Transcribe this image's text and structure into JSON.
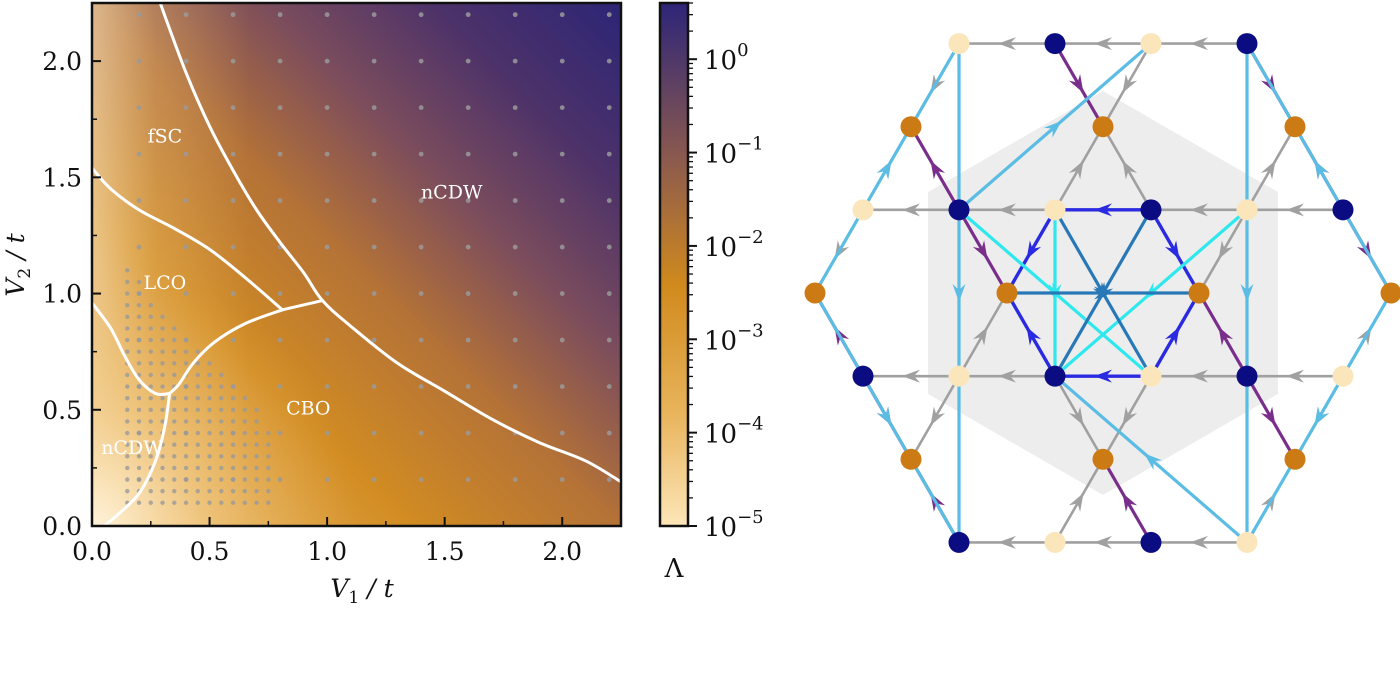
{
  "chart_data": [
    {
      "type": "heatmap",
      "title": "",
      "xlabel": "V1 / t",
      "ylabel": "V2 / t",
      "x_axis_label": {
        "main": "V",
        "sub": "1",
        "rest": " / t"
      },
      "y_axis_label": {
        "main": "V",
        "sub": "2",
        "rest": " / t"
      },
      "xlim": [
        0,
        2.25
      ],
      "ylim": [
        0,
        2.25
      ],
      "xticks": [
        0.0,
        0.5,
        1.0,
        1.5,
        2.0
      ],
      "xtick_labels": [
        "0.0",
        "0.5",
        "1.0",
        "1.5",
        "2.0"
      ],
      "yticks": [
        0.0,
        0.5,
        1.0,
        1.5,
        2.0
      ],
      "ytick_labels": [
        "0.0",
        "0.5",
        "1.0",
        "1.5",
        "2.0"
      ],
      "colorbar": {
        "label": "Λ",
        "scale": "log",
        "range": [
          1e-05,
          4
        ],
        "ticks": [
          1e-05,
          0.0001,
          0.001,
          0.01,
          0.1,
          1
        ],
        "tick_labels": [
          {
            "base": "10",
            "exp": "−5"
          },
          {
            "base": "10",
            "exp": "−4"
          },
          {
            "base": "10",
            "exp": "−3"
          },
          {
            "base": "10",
            "exp": "−2"
          },
          {
            "base": "10",
            "exp": "−1"
          },
          {
            "base": "10",
            "exp": "0"
          }
        ],
        "colors": [
          "#fde6b8",
          "#e8b35a",
          "#d08a1c",
          "#8c5a4e",
          "#2d2578"
        ]
      },
      "regions": [
        {
          "label": "fSC",
          "x": 0.31,
          "y": 1.65
        },
        {
          "label": "nCDW",
          "x": 1.53,
          "y": 1.41
        },
        {
          "label": "LCO",
          "x": 0.31,
          "y": 1.02
        },
        {
          "label": "CBO",
          "x": 0.92,
          "y": 0.48
        },
        {
          "label": "nCDW",
          "x": 0.17,
          "y": 0.31
        }
      ],
      "phase_boundaries": [
        [
          [
            0.29,
            2.25
          ],
          [
            0.4,
            1.95
          ],
          [
            0.5,
            1.72
          ],
          [
            0.6,
            1.53
          ],
          [
            0.7,
            1.36
          ],
          [
            0.8,
            1.22
          ],
          [
            0.9,
            1.09
          ],
          [
            0.98,
            0.97
          ],
          [
            1.1,
            0.86
          ],
          [
            1.3,
            0.7
          ],
          [
            1.5,
            0.58
          ],
          [
            1.7,
            0.46
          ],
          [
            1.9,
            0.36
          ],
          [
            2.1,
            0.28
          ],
          [
            2.25,
            0.19
          ]
        ],
        [
          [
            0.0,
            1.54
          ],
          [
            0.08,
            1.45
          ],
          [
            0.2,
            1.36
          ],
          [
            0.35,
            1.28
          ],
          [
            0.5,
            1.19
          ],
          [
            0.65,
            1.07
          ],
          [
            0.81,
            0.93
          ]
        ],
        [
          [
            0.81,
            0.93
          ],
          [
            0.98,
            0.97
          ]
        ],
        [
          [
            0.81,
            0.93
          ],
          [
            0.65,
            0.87
          ],
          [
            0.52,
            0.79
          ],
          [
            0.43,
            0.7
          ],
          [
            0.37,
            0.61
          ],
          [
            0.33,
            0.57
          ]
        ],
        [
          [
            0.0,
            0.96
          ],
          [
            0.08,
            0.85
          ],
          [
            0.14,
            0.73
          ],
          [
            0.2,
            0.63
          ],
          [
            0.27,
            0.57
          ],
          [
            0.33,
            0.57
          ]
        ],
        [
          [
            0.33,
            0.57
          ],
          [
            0.31,
            0.43
          ],
          [
            0.27,
            0.28
          ],
          [
            0.2,
            0.14
          ],
          [
            0.1,
            0.04
          ],
          [
            0.05,
            0.0
          ]
        ]
      ],
      "sample_points": {
        "coarse_grid": {
          "x_start": 0.2,
          "x_step": 0.2,
          "y_start": 0.2,
          "y_step": 0.2,
          "max": 2.25
        },
        "dense_region": {
          "x_range": [
            0.15,
            0.75
          ],
          "y_range": [
            0.1,
            1.1
          ],
          "step": 0.05
        }
      }
    },
    {
      "type": "diagram",
      "title": "",
      "colors": {
        "gray_edge": "#a0a0a0",
        "light_blue_edge": "#5bbce4",
        "cyan_edge": "#2ee8ee",
        "purple_edge": "#7a2e8c",
        "blue_edge": "#2a2ae0",
        "steel_edge": "#2878b8",
        "hexagon": "#ededed",
        "node_navy": "#0b0b82",
        "node_orange": "#cc7a14",
        "node_cream": "#fbe6bc"
      }
    }
  ]
}
